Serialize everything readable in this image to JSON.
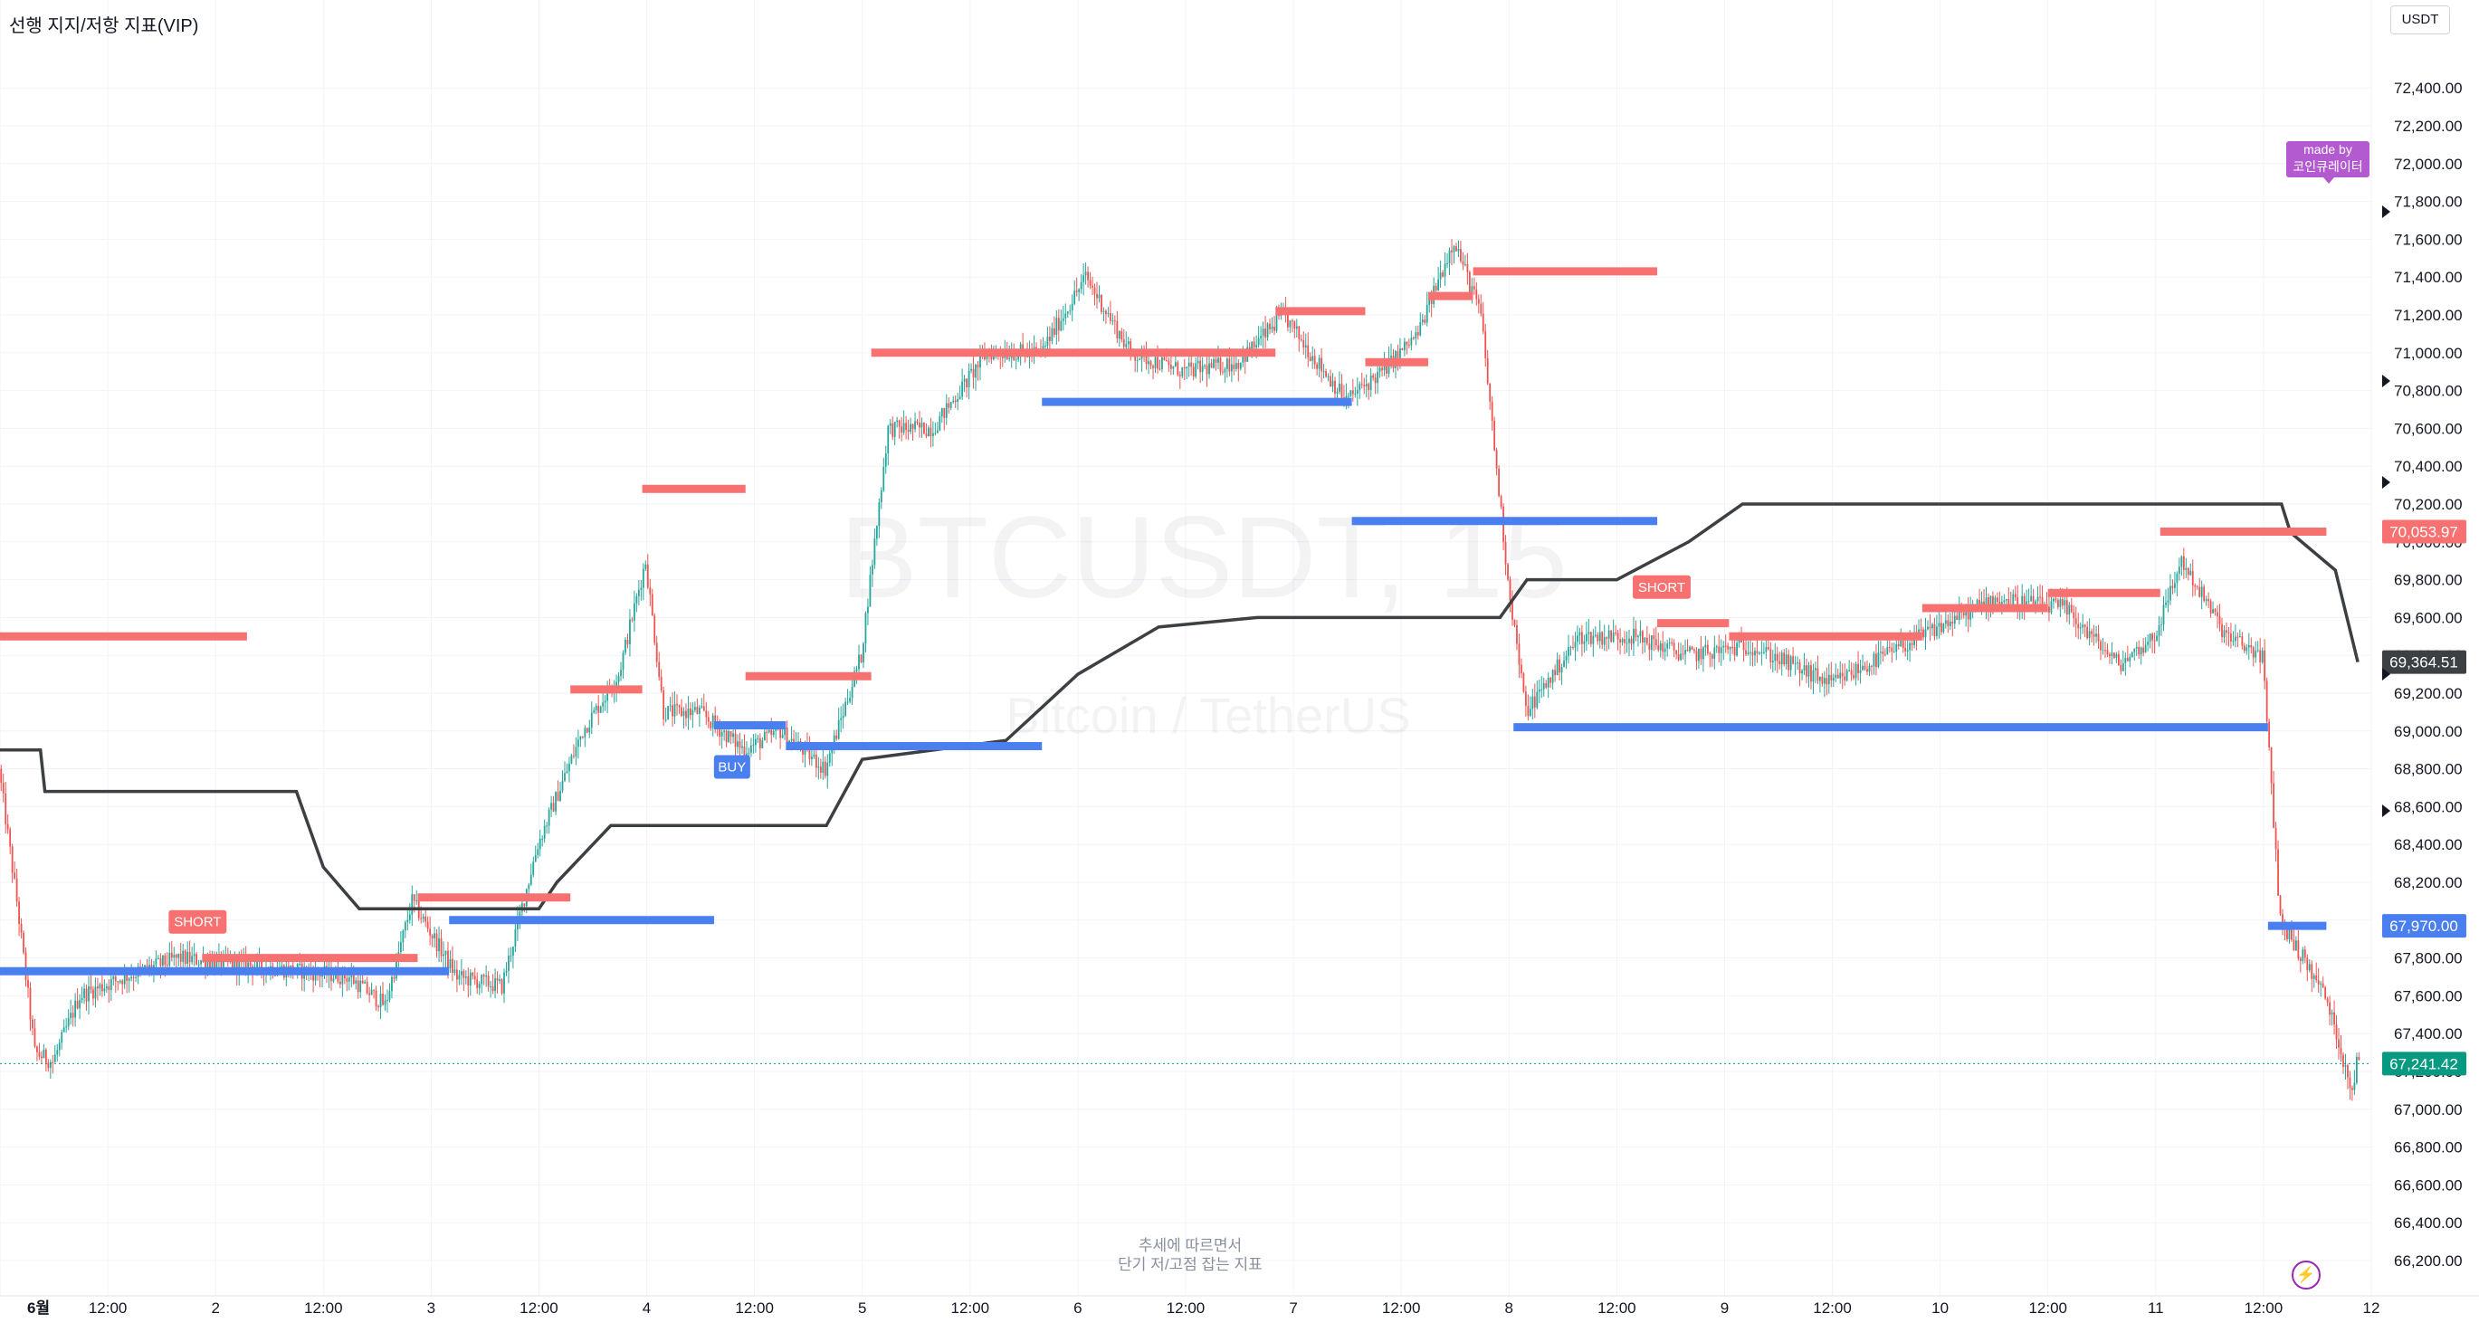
{
  "indicator_title": "선행 지지/저항 지표(VIP)",
  "currency": "USDT",
  "watermark": {
    "symbol": "BTCUSDT, 15",
    "name": "Bitcoin / TetherUS"
  },
  "footer_note": [
    "추세에 따르면서",
    "단기 저/고점 잡는 지표"
  ],
  "made_by": [
    "made by",
    "코인큐레이터"
  ],
  "bolt_icon": "lightning-icon",
  "colors": {
    "up": "#26a69a",
    "down": "#ef5350",
    "resistance": "#f87171",
    "support": "#4a7ff0",
    "trend": "#3c4043",
    "grid": "#f0f3fa",
    "axis_text": "#131722",
    "current_price": "#089981"
  },
  "chart_data": {
    "type": "candlestick",
    "title": "",
    "x_ticks": [
      "6월",
      "12:00",
      "2",
      "12:00",
      "3",
      "12:00",
      "4",
      "12:00",
      "5",
      "12:00",
      "6",
      "12:00",
      "7",
      "12:00",
      "8",
      "12:00",
      "9",
      "12:00",
      "10",
      "12:00",
      "11",
      "12:00",
      "12"
    ],
    "xlim": [
      "2024-06-01 00:00",
      "2024-06-12 00:00"
    ],
    "y_ticks": [
      66200,
      66400,
      66600,
      66800,
      67000,
      67200,
      67400,
      67600,
      67800,
      68000,
      68200,
      68400,
      68600,
      68800,
      69000,
      69200,
      69400,
      69600,
      69800,
      70000,
      70200,
      70400,
      70600,
      70800,
      71000,
      71200,
      71400,
      71600,
      71800,
      72000,
      72200,
      72400
    ],
    "ylim": [
      66150,
      72500
    ],
    "grid": true,
    "price_path": [
      [
        "2024-06-01 00:00",
        68800
      ],
      [
        "2024-06-01 02:00",
        68100
      ],
      [
        "2024-06-01 04:00",
        67300
      ],
      [
        "2024-06-01 06:00",
        67250
      ],
      [
        "2024-06-01 09:00",
        67600
      ],
      [
        "2024-06-01 14:00",
        67700
      ],
      [
        "2024-06-01 20:00",
        67800
      ],
      [
        "2024-06-02 06:00",
        67750
      ],
      [
        "2024-06-02 15:00",
        67700
      ],
      [
        "2024-06-02 19:00",
        67550
      ],
      [
        "2024-06-02 22:00",
        68100
      ],
      [
        "2024-06-03 03:00",
        67700
      ],
      [
        "2024-06-03 08:00",
        67650
      ],
      [
        "2024-06-03 12:00",
        68400
      ],
      [
        "2024-06-03 17:00",
        69000
      ],
      [
        "2024-06-03 21:00",
        69300
      ],
      [
        "2024-06-04 00:00",
        69900
      ],
      [
        "2024-06-04 02:00",
        69100
      ],
      [
        "2024-06-04 06:00",
        69100
      ],
      [
        "2024-06-04 11:00",
        68900
      ],
      [
        "2024-06-04 15:00",
        69000
      ],
      [
        "2024-06-04 20:00",
        68800
      ],
      [
        "2024-06-05 00:00",
        69400
      ],
      [
        "2024-06-05 03:00",
        70600
      ],
      [
        "2024-06-05 08:00",
        70600
      ],
      [
        "2024-06-05 14:00",
        71000
      ],
      [
        "2024-06-05 20:00",
        71000
      ],
      [
        "2024-06-06 01:00",
        71400
      ],
      [
        "2024-06-06 06:00",
        71000
      ],
      [
        "2024-06-06 12:00",
        70900
      ],
      [
        "2024-06-06 18:00",
        70950
      ],
      [
        "2024-06-06 23:00",
        71200
      ],
      [
        "2024-06-07 02:00",
        71000
      ],
      [
        "2024-06-07 06:00",
        70750
      ],
      [
        "2024-06-07 10:00",
        70900
      ],
      [
        "2024-06-07 14:00",
        71100
      ],
      [
        "2024-06-07 18:00",
        71600
      ],
      [
        "2024-06-07 21:00",
        71200
      ],
      [
        "2024-06-08 00:00",
        69800
      ],
      [
        "2024-06-08 02:00",
        69100
      ],
      [
        "2024-06-08 08:00",
        69500
      ],
      [
        "2024-06-08 14:00",
        69500
      ],
      [
        "2024-06-08 20:00",
        69400
      ],
      [
        "2024-06-09 03:00",
        69450
      ],
      [
        "2024-06-09 12:00",
        69250
      ],
      [
        "2024-06-09 18:00",
        69400
      ],
      [
        "2024-06-10 00:00",
        69550
      ],
      [
        "2024-06-10 06:00",
        69700
      ],
      [
        "2024-06-10 14:00",
        69650
      ],
      [
        "2024-06-10 20:00",
        69350
      ],
      [
        "2024-06-11 00:00",
        69500
      ],
      [
        "2024-06-11 03:00",
        69900
      ],
      [
        "2024-06-11 08:00",
        69500
      ],
      [
        "2024-06-11 12:00",
        69400
      ],
      [
        "2024-06-11 14:00",
        68000
      ],
      [
        "2024-06-11 19:00",
        67600
      ],
      [
        "2024-06-11 22:00",
        67100
      ],
      [
        "2024-06-11 22:30",
        67241.42
      ]
    ],
    "trend_line": [
      [
        "2024-06-01 00:00",
        68900
      ],
      [
        "2024-06-01 04:30",
        68900
      ],
      [
        "2024-06-01 05:00",
        68680
      ],
      [
        "2024-06-02 09:00",
        68680
      ],
      [
        "2024-06-02 12:00",
        68280
      ],
      [
        "2024-06-02 16:00",
        68060
      ],
      [
        "2024-06-03 12:00",
        68060
      ],
      [
        "2024-06-03 14:00",
        68200
      ],
      [
        "2024-06-03 20:00",
        68500
      ],
      [
        "2024-06-04 20:00",
        68500
      ],
      [
        "2024-06-05 00:00",
        68850
      ],
      [
        "2024-06-05 16:00",
        68950
      ],
      [
        "2024-06-06 00:00",
        69300
      ],
      [
        "2024-06-06 09:00",
        69550
      ],
      [
        "2024-06-06 20:00",
        69600
      ],
      [
        "2024-06-07 23:00",
        69600
      ],
      [
        "2024-06-08 02:00",
        69800
      ],
      [
        "2024-06-08 12:00",
        69800
      ],
      [
        "2024-06-08 20:00",
        70000
      ],
      [
        "2024-06-09 02:00",
        70200
      ],
      [
        "2024-06-11 14:00",
        70200
      ],
      [
        "2024-06-11 15:00",
        70050
      ],
      [
        "2024-06-11 20:00",
        69850
      ],
      [
        "2024-06-11 22:30",
        69364.51
      ]
    ],
    "resistance_levels": [
      {
        "start": "2024-06-01 00:00",
        "end": "2024-06-02 03:30",
        "value": 69500
      },
      {
        "start": "2024-06-01 22:30",
        "end": "2024-06-02 22:30",
        "value": 67800
      },
      {
        "start": "2024-06-02 22:30",
        "end": "2024-06-03 15:30",
        "value": 68120
      },
      {
        "start": "2024-06-03 15:30",
        "end": "2024-06-03 23:30",
        "value": 69220
      },
      {
        "start": "2024-06-03 23:30",
        "end": "2024-06-04 11:00",
        "value": 70280
      },
      {
        "start": "2024-06-04 11:00",
        "end": "2024-06-05 01:00",
        "value": 69290
      },
      {
        "start": "2024-06-05 01:00",
        "end": "2024-06-06 22:00",
        "value": 71000
      },
      {
        "start": "2024-06-06 22:00",
        "end": "2024-06-07 08:00",
        "value": 71220
      },
      {
        "start": "2024-06-07 08:00",
        "end": "2024-06-07 15:00",
        "value": 70950
      },
      {
        "start": "2024-06-07 15:00",
        "end": "2024-06-07 20:00",
        "value": 71300
      },
      {
        "start": "2024-06-07 20:00",
        "end": "2024-06-08 16:30",
        "value": 71430
      },
      {
        "start": "2024-06-08 16:30",
        "end": "2024-06-09 00:30",
        "value": 69570
      },
      {
        "start": "2024-06-09 00:30",
        "end": "2024-06-09 22:00",
        "value": 69500
      },
      {
        "start": "2024-06-09 22:00",
        "end": "2024-06-10 12:00",
        "value": 69650
      },
      {
        "start": "2024-06-10 12:00",
        "end": "2024-06-11 00:30",
        "value": 69730
      },
      {
        "start": "2024-06-11 00:30",
        "end": "2024-06-11 19:00",
        "value": 70053.97
      }
    ],
    "support_levels": [
      {
        "start": "2024-06-01 00:00",
        "end": "2024-06-03 02:00",
        "value": 67730
      },
      {
        "start": "2024-06-03 02:00",
        "end": "2024-06-04 07:30",
        "value": 68000
      },
      {
        "start": "2024-06-04 07:30",
        "end": "2024-06-04 15:30",
        "value": 69030
      },
      {
        "start": "2024-06-04 15:30",
        "end": "2024-06-05 20:00",
        "value": 68920
      },
      {
        "start": "2024-06-05 20:00",
        "end": "2024-06-07 06:30",
        "value": 70740
      },
      {
        "start": "2024-06-07 06:30",
        "end": "2024-06-08 16:30",
        "value": 70110
      },
      {
        "start": "2024-06-08 00:30",
        "end": "2024-06-11 12:30",
        "value": 69020
      },
      {
        "start": "2024-06-11 12:30",
        "end": "2024-06-11 19:00",
        "value": 67970
      }
    ],
    "signals": [
      {
        "label": "SHORT",
        "time": "2024-06-01 22:00",
        "price": 67900,
        "type": "short"
      },
      {
        "label": "BUY",
        "time": "2024-06-04 09:30",
        "price": 68810,
        "type": "buy"
      },
      {
        "label": "SHORT",
        "time": "2024-06-08 17:00",
        "price": 69670,
        "type": "short"
      }
    ],
    "price_labels": [
      {
        "text": "70,053.97",
        "value": 70053.97,
        "color": "#f87171"
      },
      {
        "text": "69,364.51",
        "value": 69364.51,
        "color": "#3c4043"
      },
      {
        "text": "67,970.00",
        "value": 67970,
        "color": "#4a7ff0"
      },
      {
        "text": "67,241.42",
        "value": 67241.42,
        "color": "#089981"
      }
    ],
    "current_price": 67241.42
  }
}
